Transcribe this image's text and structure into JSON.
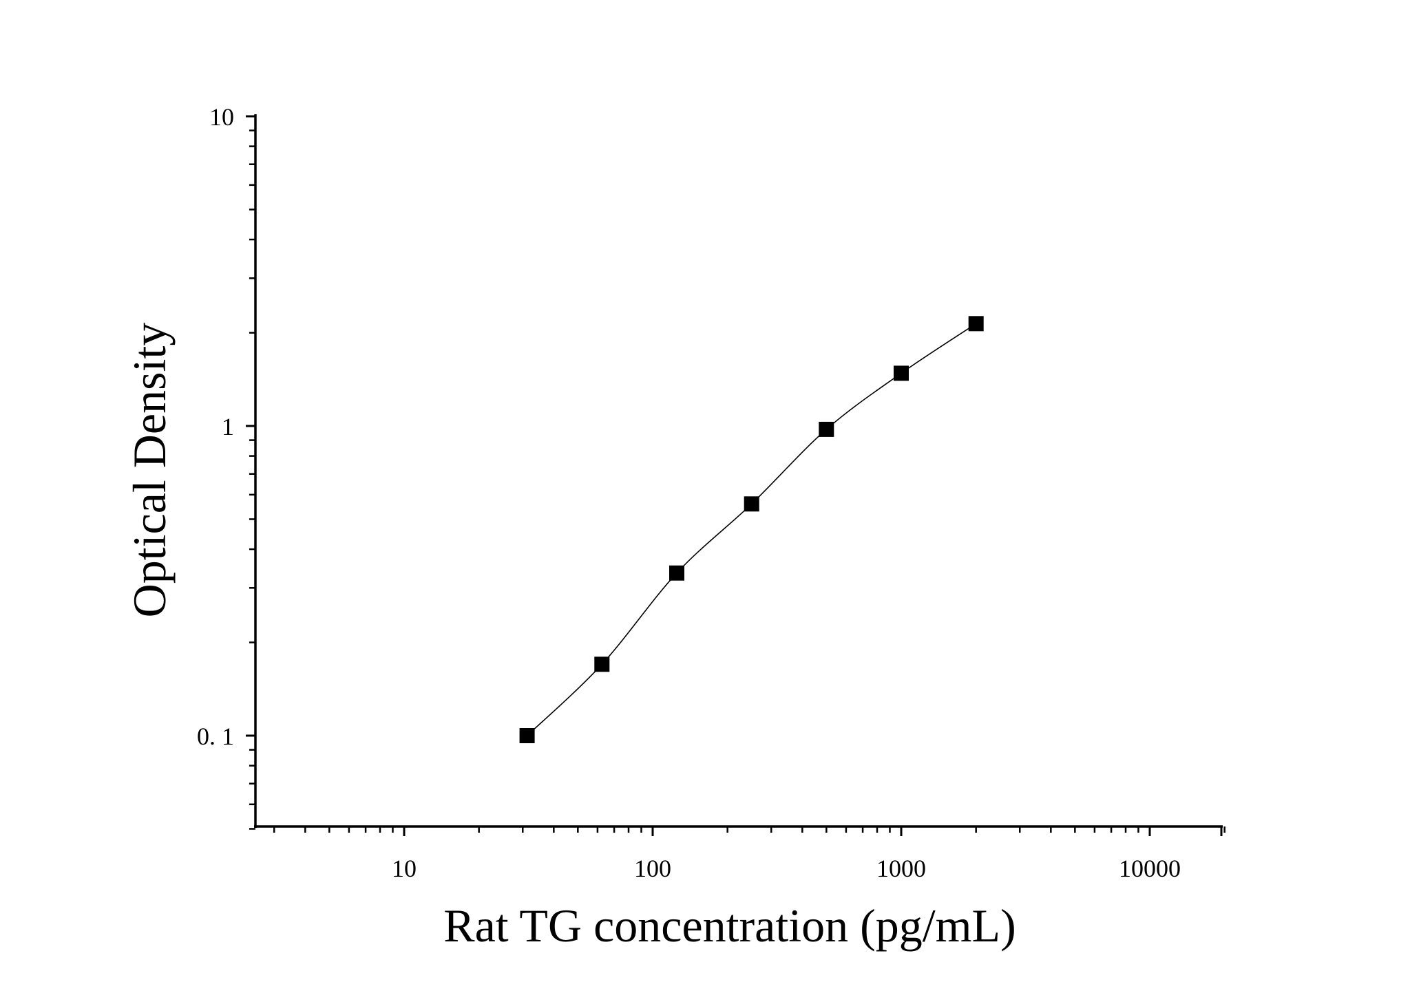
{
  "chart_data": {
    "type": "scatter",
    "title": "",
    "xlabel": "Rat TG concentration (pg/mL)",
    "ylabel": "Optical Density",
    "x_scale": "log",
    "y_scale": "log",
    "xlim": [
      2.5,
      20000
    ],
    "ylim": [
      0.05,
      10
    ],
    "x_ticks": [
      {
        "value": 10,
        "label": "10"
      },
      {
        "value": 100,
        "label": "100"
      },
      {
        "value": 1000,
        "label": "1000"
      },
      {
        "value": 10000,
        "label": "10000"
      }
    ],
    "y_ticks": [
      {
        "value": 0.1,
        "label": "0. 1"
      },
      {
        "value": 1,
        "label": "1"
      },
      {
        "value": 10,
        "label": "10"
      }
    ],
    "grid": false,
    "legend": "none",
    "marker": "square",
    "fit_line": true,
    "color": "#000000",
    "series": [
      {
        "x": [
          31.25,
          62.5,
          125,
          250,
          500,
          1000,
          2000
        ],
        "y": [
          0.1,
          0.17,
          0.335,
          0.56,
          0.975,
          1.48,
          2.14
        ]
      }
    ]
  }
}
